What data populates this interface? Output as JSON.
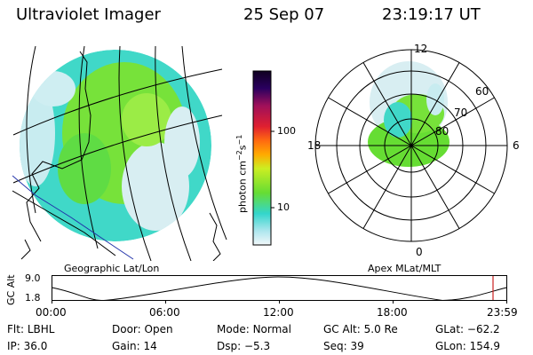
{
  "header": {
    "instrument": "Ultraviolet Imager",
    "date": "25 Sep 07",
    "time": "23:19:17 UT"
  },
  "left_panel": {
    "label": "Geographic Lat/Lon"
  },
  "right_panel": {
    "label": "Apex MLat/MLT",
    "mlt_labels": {
      "top": "12",
      "left": "18",
      "right": "6",
      "bottom": "0"
    },
    "lat_labels": [
      "60",
      "70",
      "80"
    ]
  },
  "colorbar": {
    "unit": "photon cm",
    "exp1": "−2",
    "mid": "s",
    "exp2": "−1",
    "ticks": [
      "100",
      "10"
    ]
  },
  "orbit_plot": {
    "axis_title": "GC Alt",
    "y_ticks": [
      "9.0",
      "1.8"
    ],
    "x_ticks": [
      "00:00",
      "06:00",
      "12:00",
      "18:00",
      "23:59"
    ],
    "marker_color": "#cc2222"
  },
  "info": {
    "row1": [
      {
        "key": "Flt:",
        "value": "LBHL"
      },
      {
        "key": "Door:",
        "value": "Open"
      },
      {
        "key": "Mode:",
        "value": "Normal"
      },
      {
        "key": "GC Alt:",
        "value": "5.0 Re"
      },
      {
        "key": "GLat:",
        "value": "−62.2"
      }
    ],
    "row2": [
      {
        "key": "IP:",
        "value": "36.0"
      },
      {
        "key": "Gain:",
        "value": "14"
      },
      {
        "key": "Dsp:",
        "value": "−5.3"
      },
      {
        "key": "Seq:",
        "value": "39"
      },
      {
        "key": "GLon:",
        "value": "154.9"
      }
    ]
  },
  "colors": {
    "cyan": "#33d6cc",
    "green": "#66dd33",
    "lightgreen": "#99ee44",
    "pale": "#d8eef2"
  }
}
